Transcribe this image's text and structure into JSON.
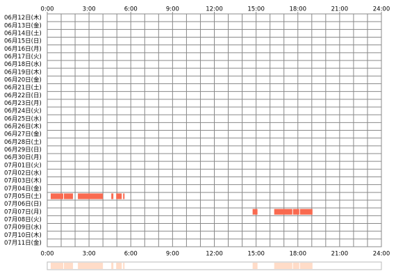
{
  "chart_data": {
    "type": "timeline",
    "categories": [
      "06月12日(木)",
      "06月13日(金)",
      "06月14日(土)",
      "06月15日(日)",
      "06月16日(月)",
      "06月17日(火)",
      "06月18日(水)",
      "06月19日(木)",
      "06月20日(金)",
      "06月21日(土)",
      "06月22日(日)",
      "06月23日(月)",
      "06月24日(火)",
      "06月25日(水)",
      "06月26日(木)",
      "06月27日(金)",
      "06月28日(土)",
      "06月29日(日)",
      "06月30日(月)",
      "07月01日(火)",
      "07月02日(水)",
      "07月03日(木)",
      "07月04日(金)",
      "07月05日(土)",
      "07月06日(日)",
      "07月07日(月)",
      "07月08日(火)",
      "07月09日(水)",
      "07月10日(木)",
      "07月11日(金)"
    ],
    "spans": [
      [],
      [],
      [],
      [],
      [],
      [],
      [],
      [],
      [],
      [],
      [],
      [],
      [],
      [],
      [],
      [],
      [],
      [],
      [],
      [],
      [],
      [],
      [],
      [
        [
          0.25,
          1.15
        ],
        [
          1.2,
          1.85
        ],
        [
          2.2,
          4.0
        ],
        [
          4.6,
          4.75
        ],
        [
          4.95,
          5.35
        ],
        [
          5.45,
          5.55
        ]
      ],
      [],
      [
        [
          14.75,
          15.1
        ],
        [
          16.3,
          17.6
        ],
        [
          17.65,
          18.1
        ],
        [
          18.15,
          19.05
        ]
      ],
      [],
      [],
      [],
      []
    ],
    "color": "#f96a50",
    "summary_color": "#ffdcc8",
    "xlim": [
      0,
      24
    ],
    "xticks": [
      {
        "value": 0,
        "label": "0:00"
      },
      {
        "value": 3,
        "label": "3:00"
      },
      {
        "value": 6,
        "label": "6:00"
      },
      {
        "value": 9,
        "label": "9:00"
      },
      {
        "value": 12,
        "label": "12:00"
      },
      {
        "value": 15,
        "label": "15:00"
      },
      {
        "value": 18,
        "label": "18:00"
      },
      {
        "value": 21,
        "label": "21:00"
      },
      {
        "value": 24,
        "label": "24:00"
      }
    ],
    "grid_step": 1
  }
}
